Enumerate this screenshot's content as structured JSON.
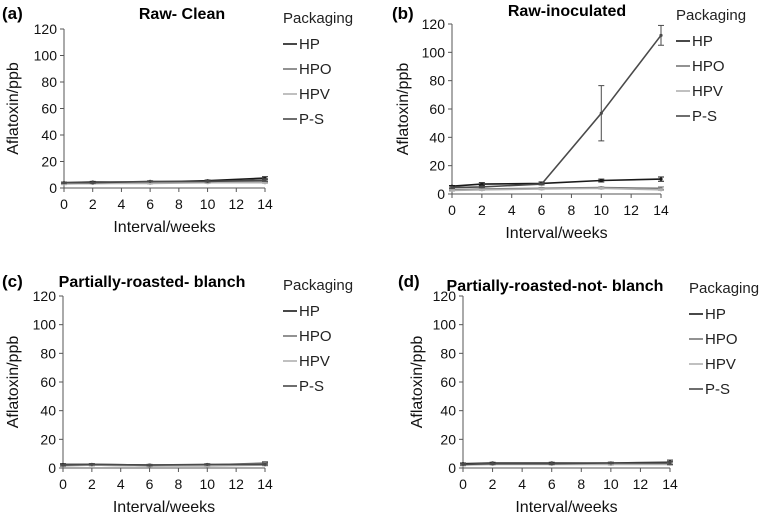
{
  "figure": {
    "background": "#ffffff"
  },
  "colors": {
    "HP": "#1a1a1a",
    "HPO": "#777777",
    "HPV": "#b0b0b0",
    "P-S": "#4a4a4a",
    "axis": "#555555"
  },
  "chart_data": [
    {
      "type": "line",
      "panel": "(a)",
      "title": "Raw- Clean",
      "xlabel": "Interval/weeks",
      "ylabel": "Aflatoxin/ppb",
      "xlim": [
        0,
        14
      ],
      "ylim": [
        0,
        120
      ],
      "xticks": [
        0,
        2,
        4,
        6,
        8,
        10,
        12,
        14
      ],
      "yticks": [
        0,
        20,
        40,
        60,
        80,
        100,
        120
      ],
      "legend_title": "Packaging",
      "legend_position": "right",
      "x": [
        0,
        2,
        6,
        10,
        14
      ],
      "series": [
        {
          "name": "HP",
          "values": [
            4.0,
            4.5,
            4.5,
            5.5,
            7.5
          ],
          "error": [
            0.5,
            0.5,
            0.5,
            0.5,
            1.0
          ]
        },
        {
          "name": "HPO",
          "values": [
            3.5,
            3.5,
            4.0,
            4.5,
            5.0
          ],
          "error": [
            0.5,
            0.5,
            0.5,
            0.5,
            1.0
          ]
        },
        {
          "name": "HPV",
          "values": [
            3.0,
            3.5,
            3.5,
            4.0,
            4.0
          ],
          "error": [
            0.5,
            0.5,
            0.5,
            0.5,
            0.5
          ]
        },
        {
          "name": "P-S",
          "values": [
            4.0,
            4.0,
            5.0,
            5.0,
            6.0
          ],
          "error": [
            0.5,
            0.5,
            0.5,
            0.5,
            1.0
          ]
        }
      ]
    },
    {
      "type": "line",
      "panel": "(b)",
      "title": "Raw-inoculated",
      "xlabel": "Interval/weeks",
      "ylabel": "Aflatoxin/ppb",
      "xlim": [
        0,
        14
      ],
      "ylim": [
        0,
        120
      ],
      "xticks": [
        0,
        2,
        4,
        6,
        8,
        10,
        12,
        14
      ],
      "yticks": [
        0,
        20,
        40,
        60,
        80,
        100,
        120
      ],
      "legend_title": "Packaging",
      "legend_position": "right",
      "x": [
        0,
        2,
        6,
        10,
        14
      ],
      "series": [
        {
          "name": "HP",
          "values": [
            5.5,
            7.0,
            7.5,
            9.5,
            10.5
          ],
          "error": [
            0.5,
            1.0,
            1.0,
            1.0,
            1.5
          ]
        },
        {
          "name": "HPO",
          "values": [
            3.0,
            3.5,
            4.0,
            4.5,
            4.0
          ],
          "error": [
            0.5,
            0.5,
            0.5,
            0.5,
            1.0
          ]
        },
        {
          "name": "HPV",
          "values": [
            2.5,
            3.0,
            3.5,
            4.0,
            3.0
          ],
          "error": [
            0.5,
            0.5,
            0.5,
            0.5,
            0.5
          ]
        },
        {
          "name": "P-S",
          "values": [
            4.5,
            5.0,
            7.0,
            57.0,
            112.0
          ],
          "error": [
            0.5,
            0.5,
            0.5,
            19.5,
            7.0
          ]
        }
      ]
    },
    {
      "type": "line",
      "panel": "(c)",
      "title": "Partially-roasted- blanch",
      "xlabel": "Interval/weeks",
      "ylabel": "Aflatoxin/ppb",
      "xlim": [
        0,
        14
      ],
      "ylim": [
        0,
        120
      ],
      "xticks": [
        0,
        2,
        4,
        6,
        8,
        10,
        12,
        14
      ],
      "yticks": [
        0,
        20,
        40,
        60,
        80,
        100,
        120
      ],
      "legend_title": "Packaging",
      "legend_position": "right",
      "x": [
        0,
        2,
        6,
        10,
        14
      ],
      "series": [
        {
          "name": "HP",
          "values": [
            2.5,
            2.5,
            2.0,
            2.0,
            3.0
          ],
          "error": [
            0.5,
            0.5,
            0.5,
            0.5,
            1.0
          ]
        },
        {
          "name": "HPO",
          "values": [
            2.0,
            2.0,
            1.5,
            2.0,
            3.5
          ],
          "error": [
            0.5,
            0.5,
            0.5,
            0.5,
            1.0
          ]
        },
        {
          "name": "HPV",
          "values": [
            1.5,
            2.0,
            1.5,
            1.5,
            2.0
          ],
          "error": [
            0.5,
            0.5,
            0.5,
            0.5,
            0.5
          ]
        },
        {
          "name": "P-S",
          "values": [
            2.0,
            2.5,
            2.0,
            2.5,
            2.5
          ],
          "error": [
            0.5,
            0.5,
            0.5,
            0.5,
            0.5
          ]
        }
      ]
    },
    {
      "type": "line",
      "panel": "(d)",
      "title": "Partially-roasted-not- blanch",
      "xlabel": "Interval/weeks",
      "ylabel": "Aflatoxin/ppb",
      "xlim": [
        0,
        14
      ],
      "ylim": [
        0,
        120
      ],
      "xticks": [
        0,
        2,
        4,
        6,
        8,
        10,
        12,
        14
      ],
      "yticks": [
        0,
        20,
        40,
        60,
        80,
        100,
        120
      ],
      "legend_title": "Packaging",
      "legend_position": "right",
      "x": [
        0,
        2,
        6,
        10,
        14
      ],
      "series": [
        {
          "name": "HP",
          "values": [
            3.0,
            3.5,
            3.5,
            3.5,
            4.0
          ],
          "error": [
            0.5,
            0.5,
            0.5,
            0.5,
            1.5
          ]
        },
        {
          "name": "HPO",
          "values": [
            2.5,
            3.0,
            3.0,
            3.0,
            3.0
          ],
          "error": [
            0.5,
            0.5,
            0.5,
            0.5,
            1.0
          ]
        },
        {
          "name": "HPV",
          "values": [
            2.0,
            2.5,
            2.5,
            2.5,
            2.5
          ],
          "error": [
            0.5,
            0.5,
            0.5,
            0.5,
            0.5
          ]
        },
        {
          "name": "P-S",
          "values": [
            2.5,
            3.0,
            3.0,
            3.5,
            3.5
          ],
          "error": [
            0.5,
            0.5,
            0.5,
            0.5,
            1.0
          ]
        }
      ]
    }
  ]
}
